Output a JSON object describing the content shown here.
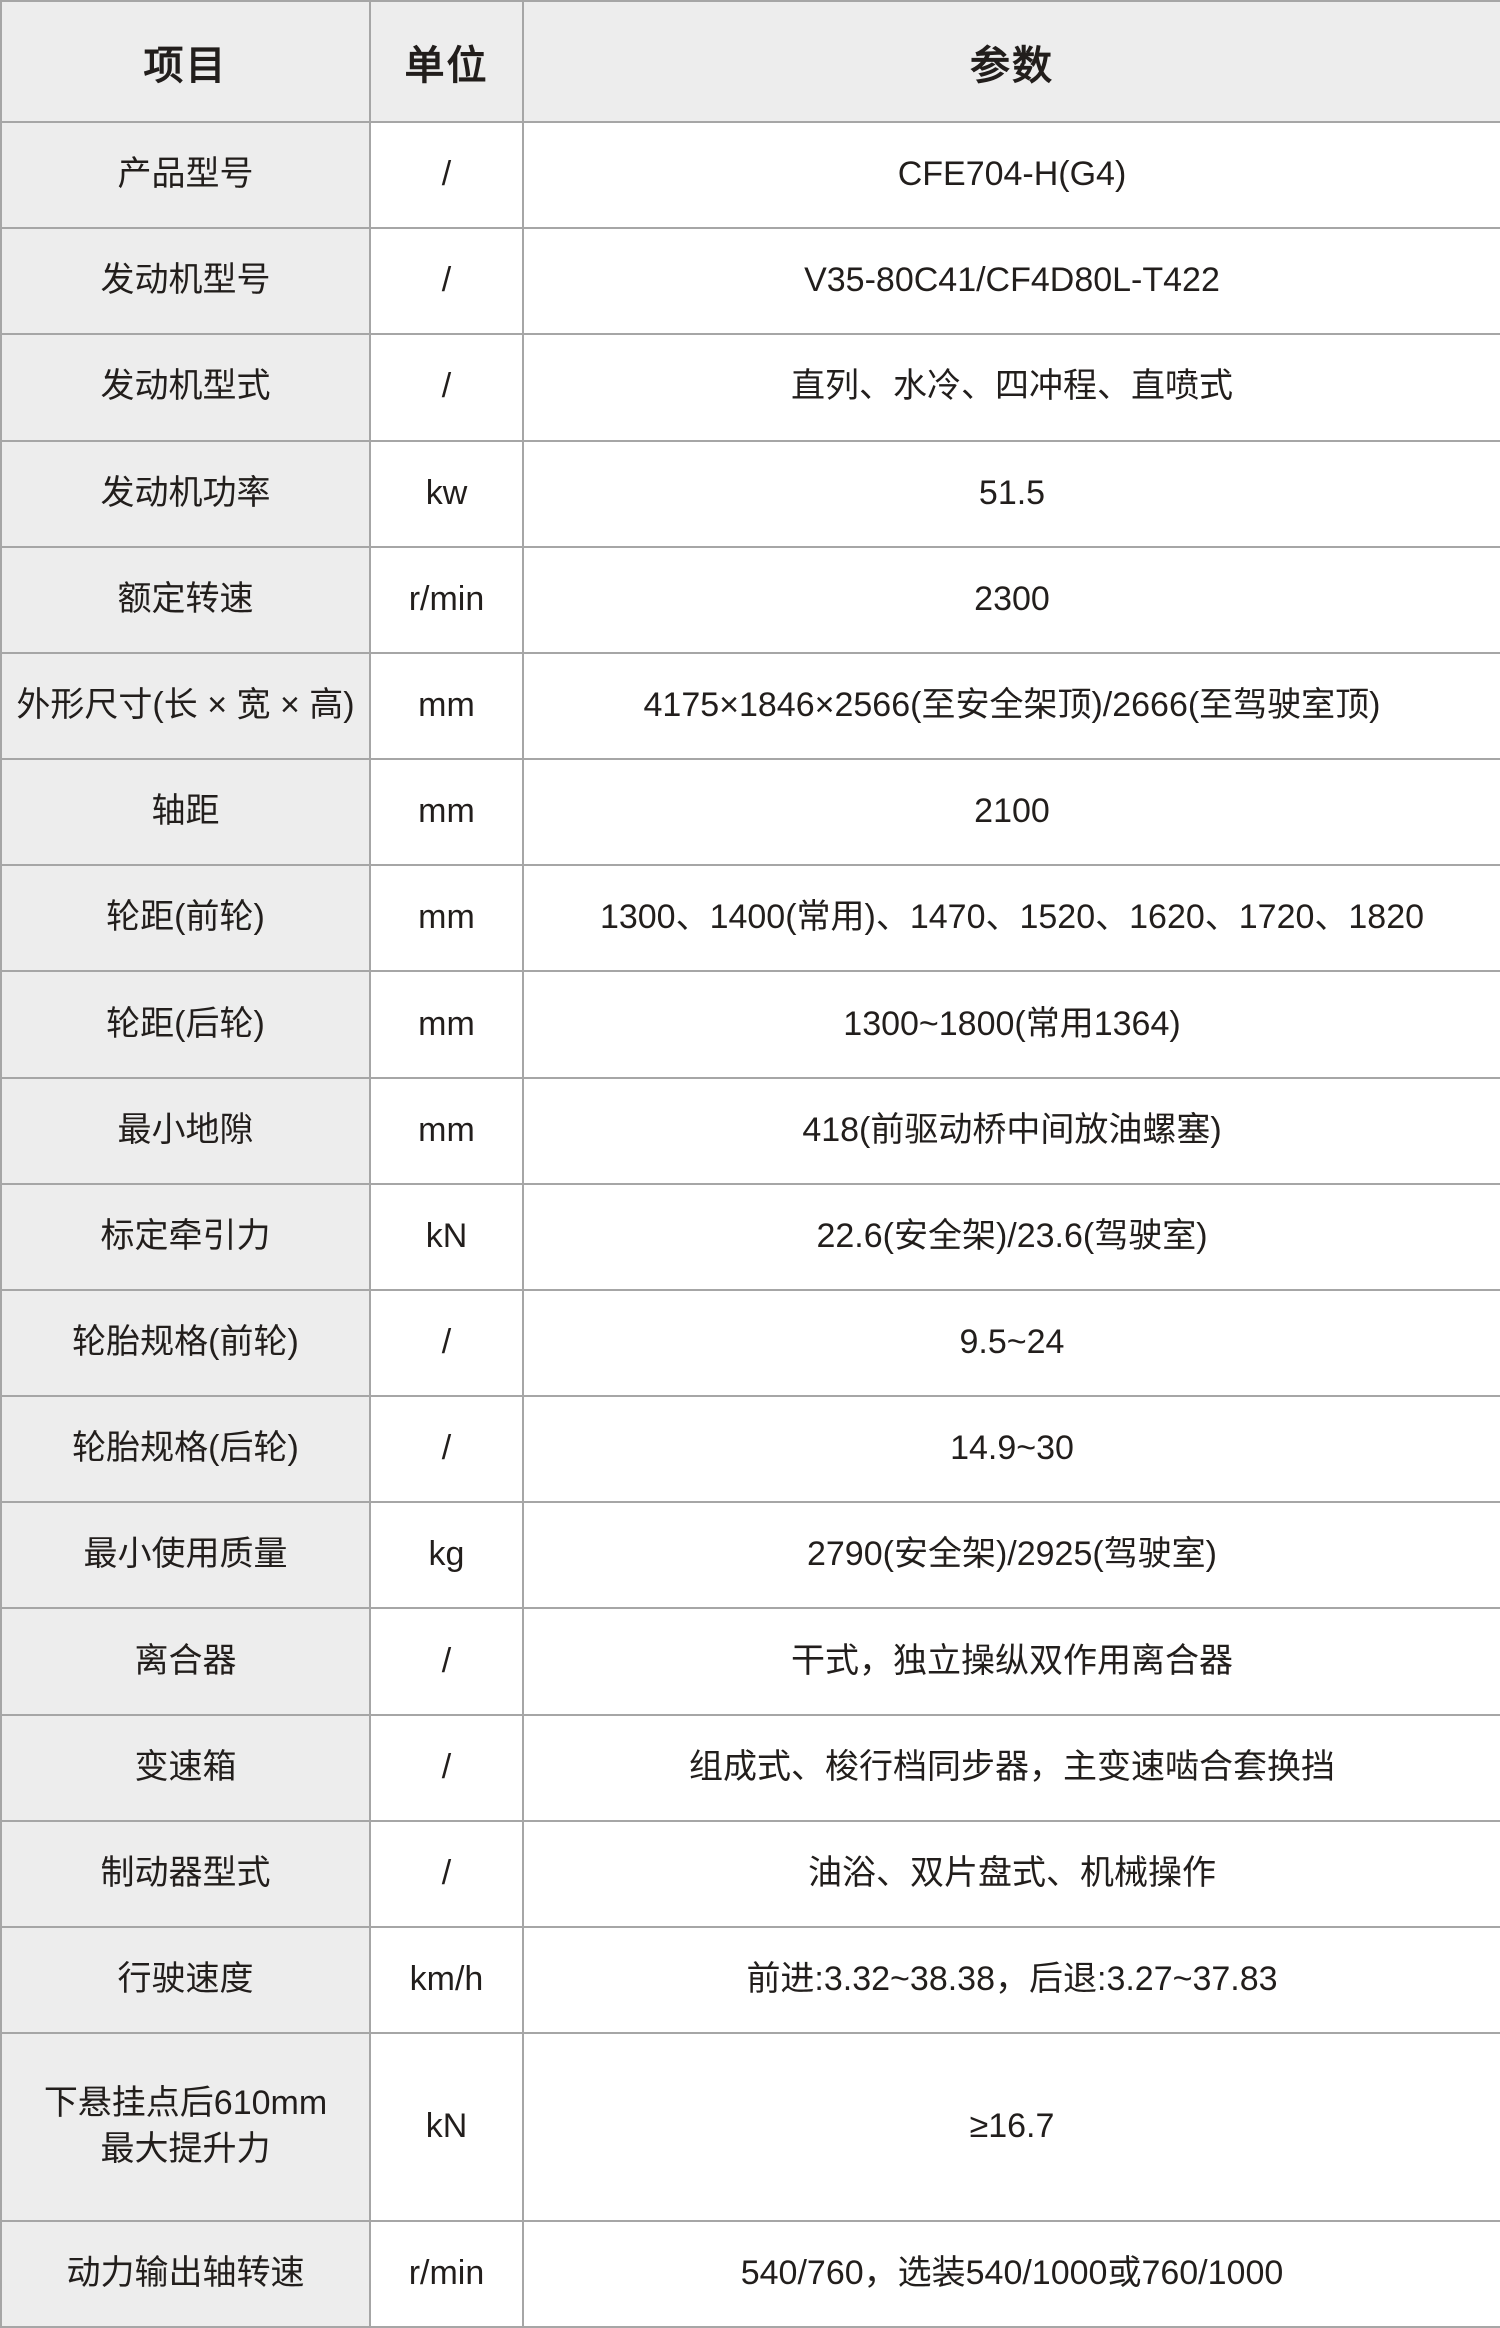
{
  "colors": {
    "header_bg": "#ededed",
    "item_column_bg": "#ededed",
    "cell_bg": "#ffffff",
    "grid_border": "#a6a6a6",
    "text": "#221e1c"
  },
  "table": {
    "headers": {
      "item": "项目",
      "unit": "单位",
      "value": "参数"
    },
    "rows": [
      {
        "item": "产品型号",
        "unit": "/",
        "value": "CFE704-H(G4)"
      },
      {
        "item": "发动机型号",
        "unit": "/",
        "value": "V35-80C41/CF4D80L-T422"
      },
      {
        "item": "发动机型式",
        "unit": "/",
        "value": "直列、水冷、四冲程、直喷式"
      },
      {
        "item": "发动机功率",
        "unit": "kw",
        "value": "51.5"
      },
      {
        "item": "额定转速",
        "unit": "r/min",
        "value": "2300"
      },
      {
        "item": "外形尺寸(长 × 宽 × 高)",
        "unit": "mm",
        "value": "4175×1846×2566(至安全架顶)/2666(至驾驶室顶)"
      },
      {
        "item": "轴距",
        "unit": "mm",
        "value": "2100"
      },
      {
        "item": "轮距(前轮)",
        "unit": "mm",
        "value": "1300、1400(常用)、1470、1520、1620、1720、1820"
      },
      {
        "item": "轮距(后轮)",
        "unit": "mm",
        "value": "1300~1800(常用1364)"
      },
      {
        "item": "最小地隙",
        "unit": "mm",
        "value": "418(前驱动桥中间放油螺塞)"
      },
      {
        "item": "标定牵引力",
        "unit": "kN",
        "value": "22.6(安全架)/23.6(驾驶室)"
      },
      {
        "item": "轮胎规格(前轮)",
        "unit": "/",
        "value": "9.5~24"
      },
      {
        "item": "轮胎规格(后轮)",
        "unit": "/",
        "value": "14.9~30"
      },
      {
        "item": "最小使用质量",
        "unit": "kg",
        "value": "2790(安全架)/2925(驾驶室)"
      },
      {
        "item": "离合器",
        "unit": "/",
        "value": "干式，独立操纵双作用离合器"
      },
      {
        "item": "变速箱",
        "unit": "/",
        "value": "组成式、梭行档同步器，主变速啮合套换挡"
      },
      {
        "item": "制动器型式",
        "unit": "/",
        "value": "油浴、双片盘式、机械操作"
      },
      {
        "item": "行驶速度",
        "unit": "km/h",
        "value": "前进:3.32~38.38，后退:3.27~37.83"
      },
      {
        "item": "下悬挂点后610mm\n最大提升力",
        "unit": "kN",
        "value": "≥16.7"
      },
      {
        "item": "动力输出轴转速",
        "unit": "r/min",
        "value": "540/760，选装540/1000或760/1000"
      }
    ]
  }
}
